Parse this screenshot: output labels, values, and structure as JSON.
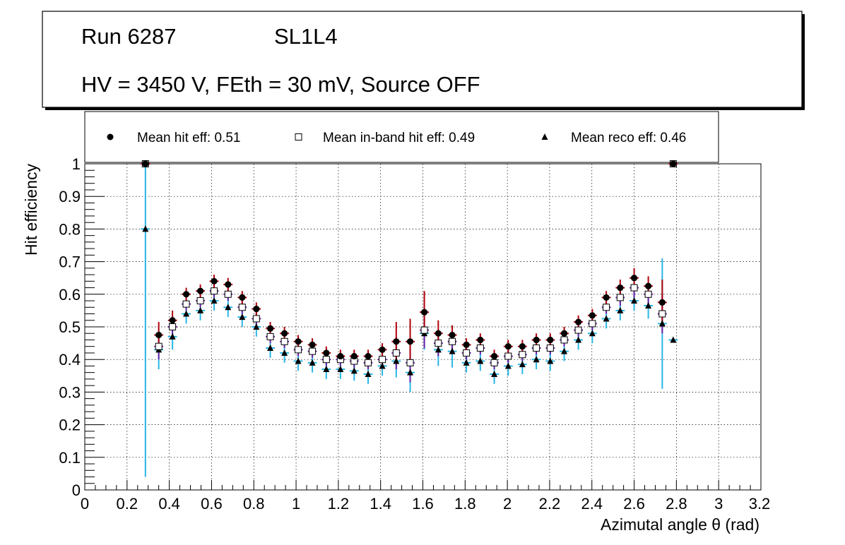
{
  "header": {
    "run_label": "Run 6287",
    "sl_label": "SL1L4",
    "conditions": "HV = 3450 V, FEth = 30 mV, Source OFF"
  },
  "legend": {
    "hit_label": "Mean hit  eff: 0.51",
    "inband_label": "Mean in-band hit eff: 0.49",
    "reco_label": "Mean reco eff: 0.46"
  },
  "colors": {
    "hit_err": "#b0000b",
    "inband_err": "#6a1fa8",
    "reco_err": "#29b6e6"
  },
  "chart_data": {
    "type": "scatter",
    "title": "",
    "xlabel": "Azimutal angle θ (rad)",
    "ylabel": "Hit efficiency",
    "xlim": [
      0,
      3.2
    ],
    "ylim": [
      0,
      1
    ],
    "x_ticks": [
      "0",
      "0.2",
      "0.4",
      "0.6",
      "0.8",
      "1",
      "1.2",
      "1.4",
      "1.6",
      "1.8",
      "2",
      "2.2",
      "2.4",
      "2.6",
      "2.8",
      "3",
      "3.2"
    ],
    "y_ticks": [
      "0",
      "0.1",
      "0.2",
      "0.3",
      "0.4",
      "0.5",
      "0.6",
      "0.7",
      "0.8",
      "0.9",
      "1"
    ],
    "bin_half_width": 0.0215,
    "x": [
      0.287,
      0.35,
      0.415,
      0.48,
      0.547,
      0.612,
      0.678,
      0.745,
      0.812,
      0.878,
      0.945,
      1.01,
      1.077,
      1.143,
      1.21,
      1.275,
      1.341,
      1.408,
      1.474,
      1.54,
      1.607,
      1.673,
      1.739,
      1.806,
      1.872,
      1.938,
      2.004,
      2.071,
      2.137,
      2.203,
      2.269,
      2.336,
      2.402,
      2.468,
      2.534,
      2.6,
      2.667,
      2.733,
      2.785
    ],
    "series": [
      {
        "name": "Mean hit  eff: 0.51",
        "marker": "circle",
        "values": [
          1.0,
          0.475,
          0.52,
          0.6,
          0.61,
          0.64,
          0.63,
          0.59,
          0.555,
          0.495,
          0.48,
          0.455,
          0.445,
          0.42,
          0.41,
          0.41,
          0.41,
          0.43,
          0.455,
          0.455,
          0.545,
          0.48,
          0.475,
          0.445,
          0.46,
          0.41,
          0.44,
          0.44,
          0.46,
          0.46,
          0.48,
          0.515,
          0.535,
          0.59,
          0.62,
          0.65,
          0.625,
          0.575,
          1.0
        ],
        "err": [
          0.0,
          0.04,
          0.03,
          0.02,
          0.02,
          0.02,
          0.02,
          0.02,
          0.02,
          0.02,
          0.02,
          0.02,
          0.02,
          0.02,
          0.02,
          0.02,
          0.02,
          0.02,
          0.06,
          0.07,
          0.065,
          0.04,
          0.03,
          0.02,
          0.02,
          0.02,
          0.02,
          0.02,
          0.02,
          0.02,
          0.02,
          0.02,
          0.02,
          0.02,
          0.025,
          0.03,
          0.03,
          0.07,
          0.0
        ]
      },
      {
        "name": "Mean in-band hit eff: 0.49",
        "marker": "open-square",
        "values": [
          1.0,
          0.44,
          0.5,
          0.57,
          0.58,
          0.61,
          0.6,
          0.56,
          0.525,
          0.47,
          0.455,
          0.43,
          0.425,
          0.4,
          0.4,
          0.395,
          0.39,
          0.4,
          0.42,
          0.39,
          0.49,
          0.45,
          0.455,
          0.42,
          0.435,
          0.39,
          0.41,
          0.415,
          0.435,
          0.435,
          0.46,
          0.49,
          0.51,
          0.56,
          0.59,
          0.62,
          0.6,
          0.54,
          1.0
        ],
        "err": [
          0.0,
          0.04,
          0.03,
          0.02,
          0.02,
          0.02,
          0.02,
          0.02,
          0.02,
          0.02,
          0.02,
          0.02,
          0.02,
          0.02,
          0.02,
          0.02,
          0.02,
          0.02,
          0.05,
          0.06,
          0.055,
          0.04,
          0.03,
          0.02,
          0.02,
          0.02,
          0.02,
          0.02,
          0.02,
          0.02,
          0.02,
          0.02,
          0.02,
          0.02,
          0.025,
          0.03,
          0.03,
          0.06,
          0.0
        ]
      },
      {
        "name": "Mean reco eff: 0.46",
        "marker": "triangle",
        "values": [
          0.8,
          0.43,
          0.47,
          0.54,
          0.55,
          0.58,
          0.56,
          0.53,
          0.5,
          0.435,
          0.42,
          0.395,
          0.39,
          0.37,
          0.37,
          0.365,
          0.355,
          0.38,
          0.395,
          0.36,
          0.48,
          0.43,
          0.425,
          0.39,
          0.395,
          0.355,
          0.38,
          0.385,
          0.4,
          0.395,
          0.425,
          0.46,
          0.48,
          0.525,
          0.55,
          0.58,
          0.565,
          0.51,
          0.46
        ],
        "err": [
          0.76,
          0.06,
          0.04,
          0.03,
          0.03,
          0.03,
          0.03,
          0.03,
          0.03,
          0.03,
          0.03,
          0.03,
          0.03,
          0.03,
          0.03,
          0.03,
          0.03,
          0.03,
          0.05,
          0.06,
          0.05,
          0.05,
          0.05,
          0.03,
          0.03,
          0.03,
          0.03,
          0.03,
          0.03,
          0.03,
          0.03,
          0.03,
          0.03,
          0.03,
          0.03,
          0.03,
          0.04,
          0.2,
          0.0
        ]
      }
    ]
  }
}
